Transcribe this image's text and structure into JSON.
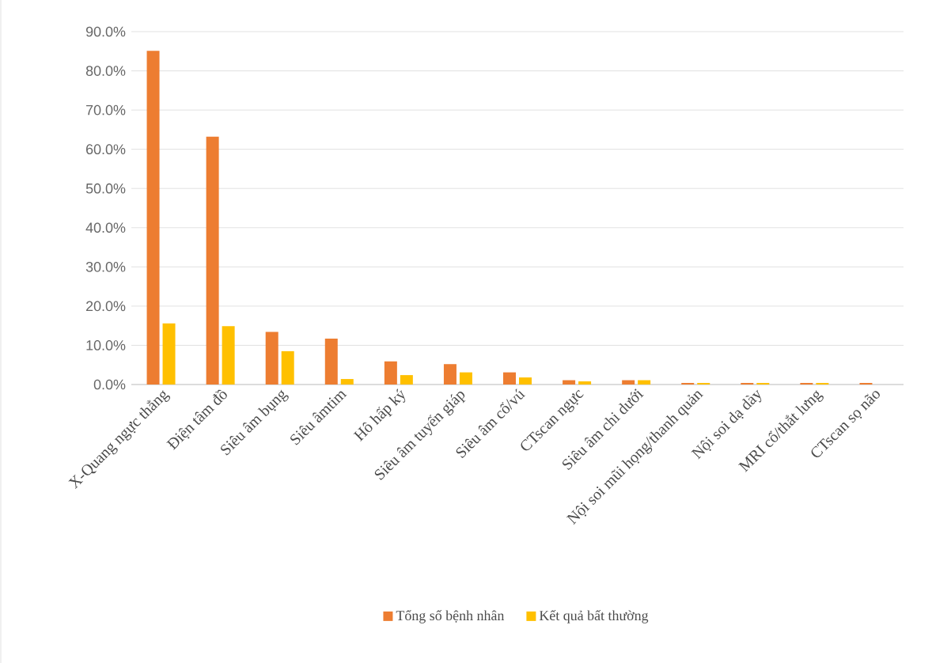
{
  "chart_data": {
    "type": "bar",
    "categories": [
      "X-Quang ngực thẳng",
      "Điện tâm đồ",
      "Siêu âm bụng",
      "Siêu âmtim",
      "Hô hấp ký",
      "Siêu âm tuyến giáp",
      "Siêu âm cổ/vú",
      "CTscan ngực",
      "Siêu âm chi dưới",
      "Nội soi mũi họng/thanh quản",
      "Nội soi dạ dày",
      "MRI cổ/thắt lưng",
      "CTscan sọ não"
    ],
    "series": [
      {
        "name": "Tổng số bệnh nhân",
        "color": "#ed7d31",
        "values": [
          85.1,
          63.2,
          13.4,
          11.7,
          5.9,
          5.2,
          3.1,
          1.1,
          1.1,
          0.4,
          0.4,
          0.4,
          0.4
        ]
      },
      {
        "name": "Kết quả bất thường",
        "color": "#ffc000",
        "values": [
          15.6,
          14.9,
          8.5,
          1.4,
          2.4,
          3.1,
          1.8,
          0.8,
          1.1,
          0.4,
          0.4,
          0.4,
          0
        ]
      }
    ],
    "ylim": [
      0,
      90
    ],
    "yticks": [
      {
        "value": 0,
        "label": "0.0%"
      },
      {
        "value": 10,
        "label": "10.0%"
      },
      {
        "value": 20,
        "label": "20.0%"
      },
      {
        "value": 30,
        "label": "30.0%"
      },
      {
        "value": 40,
        "label": "40.0%"
      },
      {
        "value": 50,
        "label": "50.0%"
      },
      {
        "value": 60,
        "label": "60.0%"
      },
      {
        "value": 70,
        "label": "70.0%"
      },
      {
        "value": 80,
        "label": "80.0%"
      },
      {
        "value": 90,
        "label": "90.0%"
      }
    ],
    "grid": "y",
    "legend": "bottom"
  }
}
